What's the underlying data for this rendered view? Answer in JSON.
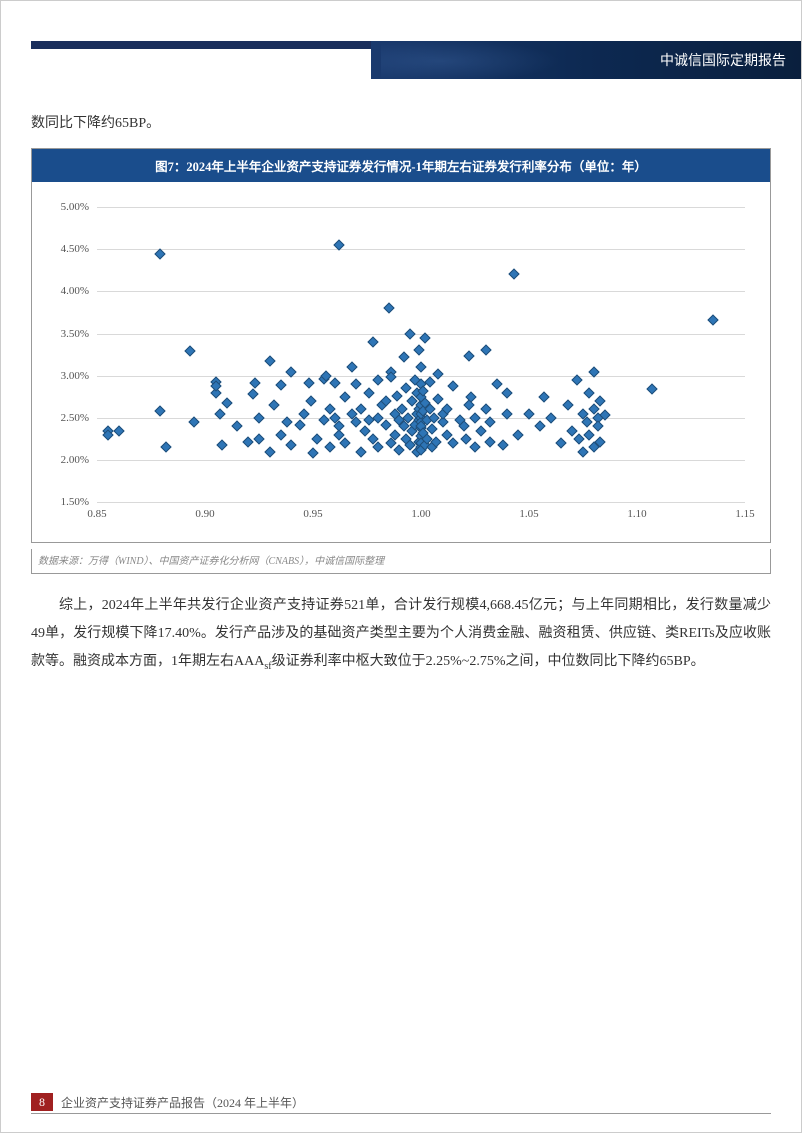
{
  "header": {
    "title": "中诚信国际定期报告"
  },
  "intro": "数同比下降约65BP。",
  "chart": {
    "type": "scatter",
    "title": "图7：2024年上半年企业资产支持证券发行情况-1年期左右证券发行利率分布（单位：年）",
    "marker_color": "#2e75b6",
    "marker_border": "#1f4e79",
    "marker_shape": "diamond",
    "background_color": "#ffffff",
    "grid_color": "#d9d9d9",
    "yaxis": {
      "min": 1.5,
      "max": 5.0,
      "ticks": [
        1.5,
        2.0,
        2.5,
        3.0,
        3.5,
        4.0,
        4.5,
        5.0
      ],
      "format": "percent"
    },
    "xaxis": {
      "min": 0.85,
      "max": 1.15,
      "ticks": [
        0.85,
        0.9,
        0.95,
        1.0,
        1.05,
        1.1,
        1.15
      ]
    },
    "points": [
      [
        0.855,
        2.35
      ],
      [
        0.855,
        2.3
      ],
      [
        0.86,
        2.35
      ],
      [
        0.879,
        2.58
      ],
      [
        0.879,
        4.45
      ],
      [
        0.882,
        2.15
      ],
      [
        0.893,
        3.29
      ],
      [
        0.895,
        2.45
      ],
      [
        0.905,
        2.93
      ],
      [
        0.905,
        2.8
      ],
      [
        0.905,
        2.88
      ],
      [
        0.907,
        2.55
      ],
      [
        0.908,
        2.18
      ],
      [
        0.91,
        2.68
      ],
      [
        0.915,
        2.4
      ],
      [
        0.92,
        2.22
      ],
      [
        0.922,
        2.78
      ],
      [
        0.923,
        2.92
      ],
      [
        0.925,
        2.5
      ],
      [
        0.925,
        2.25
      ],
      [
        0.93,
        3.18
      ],
      [
        0.93,
        2.1
      ],
      [
        0.932,
        2.65
      ],
      [
        0.935,
        2.3
      ],
      [
        0.935,
        2.89
      ],
      [
        0.938,
        2.45
      ],
      [
        0.94,
        3.05
      ],
      [
        0.94,
        2.18
      ],
      [
        0.944,
        2.42
      ],
      [
        0.946,
        2.55
      ],
      [
        0.948,
        2.91
      ],
      [
        0.949,
        2.7
      ],
      [
        0.95,
        2.08
      ],
      [
        0.952,
        2.25
      ],
      [
        0.955,
        2.96
      ],
      [
        0.955,
        2.48
      ],
      [
        0.956,
        3.0
      ],
      [
        0.958,
        2.6
      ],
      [
        0.958,
        2.15
      ],
      [
        0.96,
        2.5
      ],
      [
        0.96,
        2.92
      ],
      [
        0.962,
        2.3
      ],
      [
        0.962,
        4.55
      ],
      [
        0.962,
        2.4
      ],
      [
        0.965,
        2.75
      ],
      [
        0.965,
        2.2
      ],
      [
        0.968,
        3.1
      ],
      [
        0.968,
        2.55
      ],
      [
        0.97,
        2.45
      ],
      [
        0.97,
        2.9
      ],
      [
        0.972,
        2.1
      ],
      [
        0.972,
        2.6
      ],
      [
        0.974,
        2.35
      ],
      [
        0.976,
        2.8
      ],
      [
        0.976,
        2.48
      ],
      [
        0.978,
        2.25
      ],
      [
        0.978,
        3.4
      ],
      [
        0.98,
        2.5
      ],
      [
        0.98,
        2.95
      ],
      [
        0.98,
        2.15
      ],
      [
        0.982,
        2.65
      ],
      [
        0.984,
        2.42
      ],
      [
        0.984,
        2.7
      ],
      [
        0.985,
        3.8
      ],
      [
        0.986,
        2.2
      ],
      [
        0.986,
        3.05
      ],
      [
        0.986,
        2.98
      ],
      [
        0.988,
        2.55
      ],
      [
        0.988,
        2.3
      ],
      [
        0.989,
        2.76
      ],
      [
        0.99,
        2.48
      ],
      [
        0.99,
        2.12
      ],
      [
        0.991,
        2.6
      ],
      [
        0.992,
        2.4
      ],
      [
        0.992,
        3.22
      ],
      [
        0.993,
        2.25
      ],
      [
        0.993,
        2.85
      ],
      [
        0.994,
        2.5
      ],
      [
        0.995,
        2.18
      ],
      [
        0.995,
        3.5
      ],
      [
        0.996,
        2.7
      ],
      [
        0.996,
        2.35
      ],
      [
        0.997,
        2.42
      ],
      [
        0.997,
        2.95
      ],
      [
        0.998,
        2.55
      ],
      [
        0.998,
        2.1
      ],
      [
        0.998,
        2.8
      ],
      [
        0.999,
        2.22
      ],
      [
        0.999,
        2.48
      ],
      [
        0.999,
        3.3
      ],
      [
        0.999,
        2.6
      ],
      [
        1.0,
        2.15
      ],
      [
        1.0,
        2.38
      ],
      [
        1.0,
        2.5
      ],
      [
        1.0,
        2.9
      ],
      [
        1.0,
        2.28
      ],
      [
        1.0,
        2.65
      ],
      [
        1.0,
        2.45
      ],
      [
        1.0,
        3.1
      ],
      [
        1.0,
        2.2
      ],
      [
        1.0,
        2.75
      ],
      [
        1.0,
        2.55
      ],
      [
        1.0,
        2.12
      ],
      [
        1.0,
        2.4
      ],
      [
        1.001,
        2.82
      ],
      [
        1.001,
        2.32
      ],
      [
        1.001,
        2.58
      ],
      [
        1.002,
        2.18
      ],
      [
        1.002,
        3.45
      ],
      [
        1.002,
        2.68
      ],
      [
        1.003,
        2.48
      ],
      [
        1.003,
        2.25
      ],
      [
        1.004,
        2.93
      ],
      [
        1.004,
        2.6
      ],
      [
        1.005,
        2.15
      ],
      [
        1.005,
        2.37
      ],
      [
        1.006,
        2.5
      ],
      [
        1.007,
        2.22
      ],
      [
        1.008,
        2.72
      ],
      [
        1.008,
        3.02
      ],
      [
        1.01,
        2.45
      ],
      [
        1.01,
        2.55
      ],
      [
        1.012,
        2.3
      ],
      [
        1.012,
        2.6
      ],
      [
        1.015,
        2.2
      ],
      [
        1.015,
        2.88
      ],
      [
        1.018,
        2.48
      ],
      [
        1.02,
        2.4
      ],
      [
        1.021,
        2.25
      ],
      [
        1.022,
        3.23
      ],
      [
        1.022,
        2.65
      ],
      [
        1.023,
        2.75
      ],
      [
        1.025,
        2.15
      ],
      [
        1.025,
        2.5
      ],
      [
        1.028,
        2.35
      ],
      [
        1.03,
        3.3
      ],
      [
        1.03,
        2.6
      ],
      [
        1.032,
        2.45
      ],
      [
        1.032,
        2.22
      ],
      [
        1.035,
        2.9
      ],
      [
        1.038,
        2.18
      ],
      [
        1.04,
        2.8
      ],
      [
        1.04,
        2.55
      ],
      [
        1.043,
        4.21
      ],
      [
        1.045,
        2.3
      ],
      [
        1.05,
        2.55
      ],
      [
        1.055,
        2.4
      ],
      [
        1.057,
        2.75
      ],
      [
        1.06,
        2.5
      ],
      [
        1.065,
        2.2
      ],
      [
        1.068,
        2.65
      ],
      [
        1.07,
        2.35
      ],
      [
        1.072,
        2.95
      ],
      [
        1.073,
        2.25
      ],
      [
        1.075,
        2.55
      ],
      [
        1.075,
        2.1
      ],
      [
        1.077,
        2.45
      ],
      [
        1.078,
        2.8
      ],
      [
        1.078,
        2.3
      ],
      [
        1.08,
        2.6
      ],
      [
        1.08,
        2.15
      ],
      [
        1.08,
        3.05
      ],
      [
        1.082,
        2.5
      ],
      [
        1.082,
        2.4
      ],
      [
        1.083,
        2.7
      ],
      [
        1.083,
        2.22
      ],
      [
        1.085,
        2.53
      ],
      [
        1.107,
        2.84
      ],
      [
        1.135,
        3.66
      ]
    ]
  },
  "data_source": "数据来源：万得（WIND）、中国资产证券化分析网（CNABS），中诚信国际整理",
  "body": {
    "prefix": "综上，2024年上半年共发行企业资产支持证券521单，合计发行规模4,668.45亿元；与上年同期相比，发行数量减少49单，发行规模下降17.40%。发行产品涉及的基础资产类型主要为个人消费金融、融资租赁、供应链、类REITs及应收账款等。融资成本方面，1年期左右AAA",
    "sf": "sf",
    "suffix": "级证券利率中枢大致位于2.25%~2.75%之间，中位数同比下降约65BP。"
  },
  "footer": {
    "page": "8",
    "title": "企业资产支持证券产品报告（2024 年上半年）"
  }
}
